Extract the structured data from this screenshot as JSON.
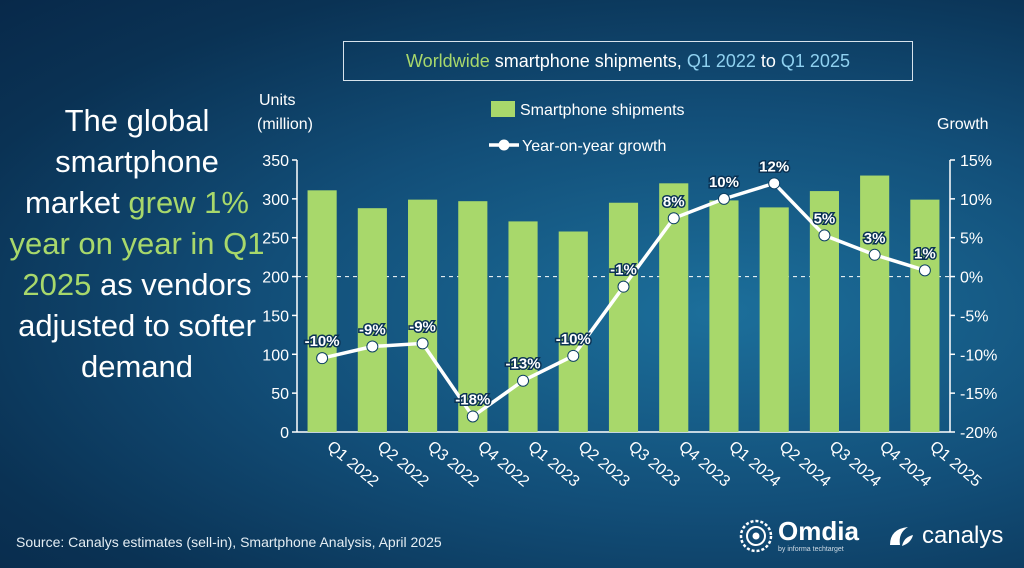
{
  "headline": {
    "part1": "The global smartphone market ",
    "highlight": "grew 1% year on year in Q1 2025",
    "part2": " as vendors adjusted to softer demand"
  },
  "title": {
    "w1": "Worldwide",
    "w2": " smartphone shipments, ",
    "w3": "Q1 2022",
    "w4": " to ",
    "w5": "Q1 2025"
  },
  "axes": {
    "left_title_line1": "Units",
    "left_title_line2": "(million)",
    "right_title": "Growth"
  },
  "source": "Source: Canalys estimates (sell-in), Smartphone Analysis, April 2025",
  "logos": {
    "omdia": "Omdia",
    "omdia_sub": "by informa techtarget",
    "canalys": "canalys"
  },
  "colors": {
    "bar": "#a8d86b",
    "line": "#ffffff",
    "highlight_text": "#a8d86b",
    "title_blue": "#8fd1f0"
  },
  "icons": [
    "omdia-logo-icon",
    "canalys-logo-icon"
  ],
  "chart_data": {
    "type": "bar",
    "title": "Worldwide smartphone shipments, Q1 2022 to Q1 2025",
    "categories": [
      "Q1 2022",
      "Q2 2022",
      "Q3 2022",
      "Q4 2022",
      "Q1 2023",
      "Q2 2023",
      "Q3 2023",
      "Q4 2023",
      "Q1 2024",
      "Q2 2024",
      "Q3 2024",
      "Q4 2024",
      "Q1 2025"
    ],
    "series": [
      {
        "name": "Smartphone shipments",
        "type": "bar",
        "axis": "left",
        "values": [
          311,
          288,
          299,
          297,
          271,
          258,
          295,
          320,
          298,
          289,
          310,
          330,
          299
        ]
      },
      {
        "name": "Year-on-year growth",
        "type": "line",
        "axis": "right",
        "values": [
          -10.5,
          -9.0,
          -8.6,
          -18,
          -13.4,
          -10.2,
          -1.3,
          7.5,
          10,
          12,
          5.3,
          2.8,
          0.8
        ],
        "labels": [
          "-10%",
          "-9%",
          "-9%",
          "-18%",
          "-13%",
          "-10%",
          "-1%",
          "8%",
          "10%",
          "12%",
          "5%",
          "3%",
          "1%"
        ]
      }
    ],
    "ylabel": "Units (million)",
    "ylim": [
      0,
      350
    ],
    "yticks": [
      "0",
      "50",
      "100",
      "150",
      "200",
      "250",
      "300",
      "350"
    ],
    "y2label": "Growth",
    "y2lim": [
      -20,
      15
    ],
    "y2ticks": [
      "-20%",
      "-15%",
      "-10%",
      "-5%",
      "0%",
      "5%",
      "10%",
      "15%"
    ],
    "legend_position": "top",
    "zero_growth_line": "dashed"
  }
}
